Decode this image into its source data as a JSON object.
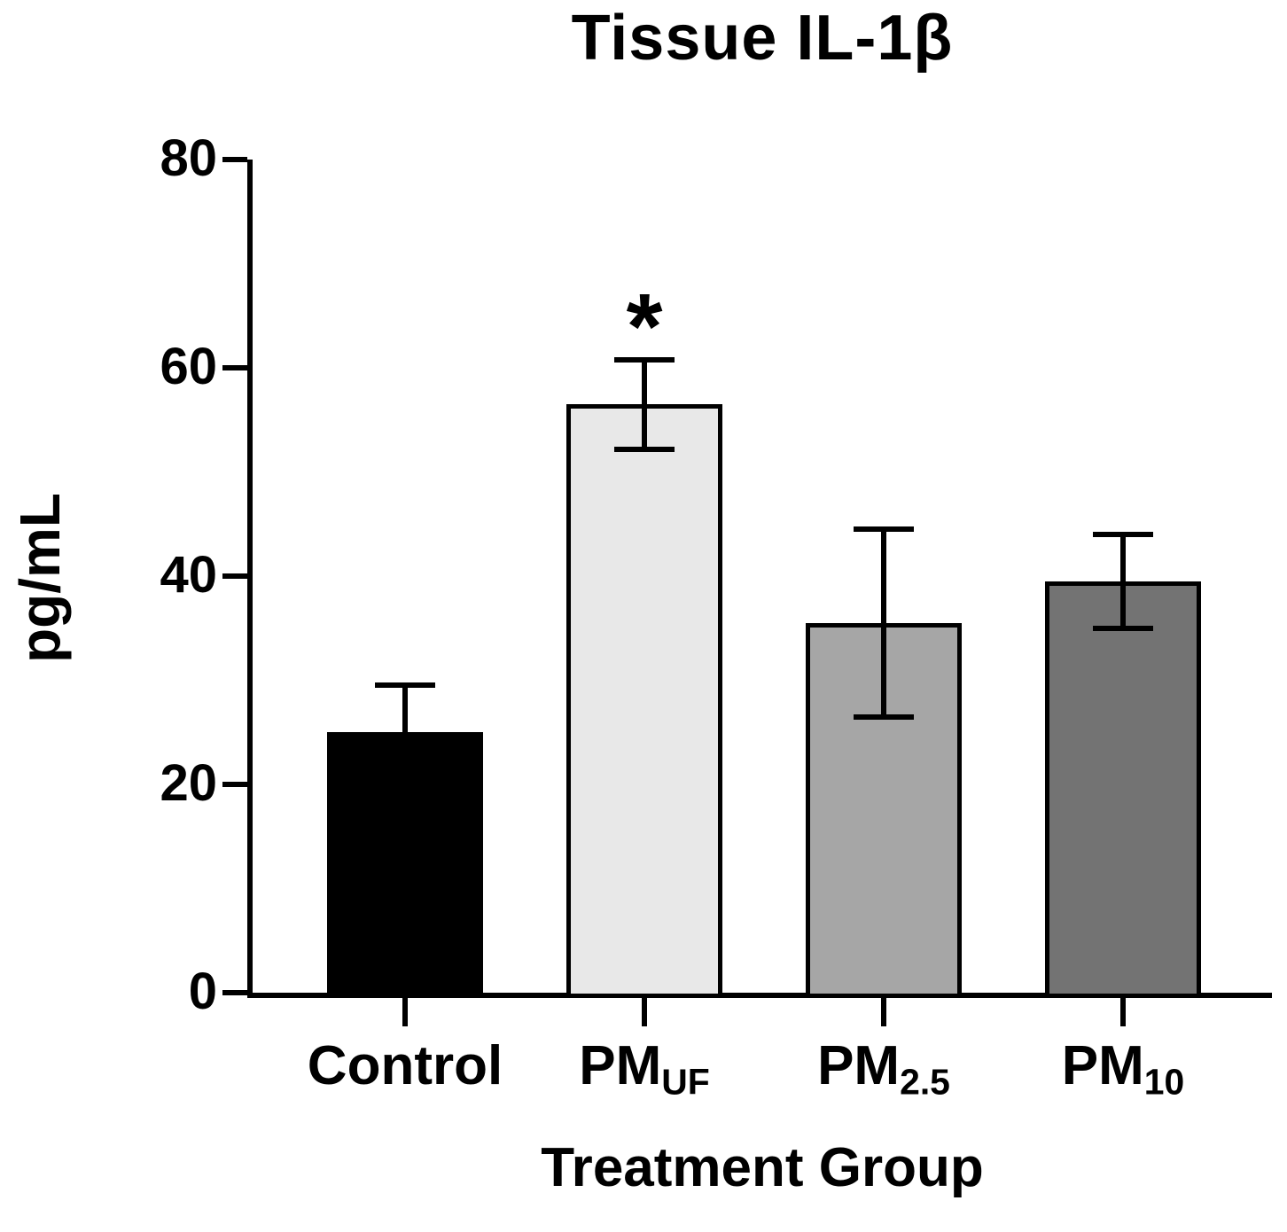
{
  "chart_data": {
    "type": "bar",
    "title": "Tissue IL-1β",
    "ylabel": "pg/mL",
    "xlabel": "Treatment Group",
    "ylim": [
      0,
      80
    ],
    "yticks": [
      0,
      20,
      40,
      60,
      80
    ],
    "categories": [
      {
        "label": "Control",
        "sub": ""
      },
      {
        "label": "PM",
        "sub": "UF"
      },
      {
        "label": "PM",
        "sub": "2.5"
      },
      {
        "label": "PM",
        "sub": "10"
      }
    ],
    "series": [
      {
        "name": "Tissue IL-1β",
        "values": [
          25,
          56.5,
          35.5,
          39.5
        ],
        "errors": [
          4.5,
          4.3,
          9,
          4.5
        ]
      }
    ],
    "bar_colors": [
      "#000000",
      "#e8e8e8",
      "#a6a6a6",
      "#737373"
    ],
    "bar_border_color": "#000000",
    "axis_color": "#000000",
    "annotations": [
      {
        "category_index": 1,
        "text": "*"
      }
    ],
    "grid": false,
    "legend": false
  }
}
